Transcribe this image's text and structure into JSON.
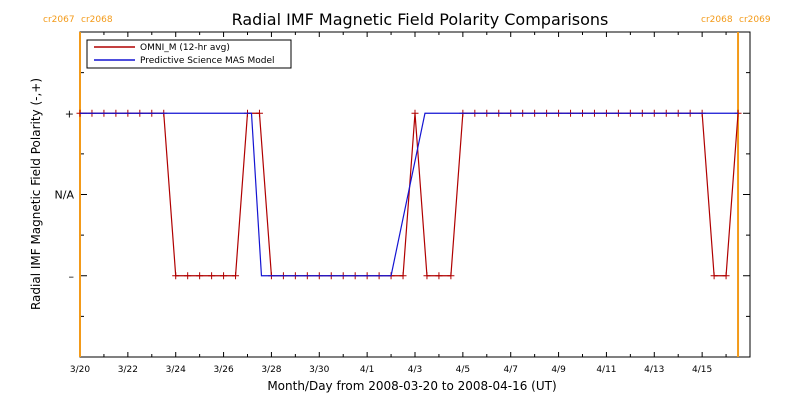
{
  "colors": {
    "omni": "#b00000",
    "mas": "#1414d2",
    "carrington": "#f39a19",
    "axis": "#000000"
  },
  "chart_data": {
    "type": "line",
    "title": "Radial IMF Magnetic Field Polarity Comparisons",
    "xlabel": "Month/Day from 2008-03-20 to 2008-04-16 (UT)",
    "ylabel": "Radial IMF Magnetic Field Polarity (-,+)",
    "x_start_date": "2008-03-20",
    "x_end_date": "2008-04-17",
    "ylim": [
      -2,
      2
    ],
    "x_ticks": [
      {
        "date": "2008-03-20",
        "label": "3/20"
      },
      {
        "date": "2008-03-22",
        "label": "3/22"
      },
      {
        "date": "2008-03-24",
        "label": "3/24"
      },
      {
        "date": "2008-03-26",
        "label": "3/26"
      },
      {
        "date": "2008-03-28",
        "label": "3/28"
      },
      {
        "date": "2008-03-30",
        "label": "3/30"
      },
      {
        "date": "2008-04-01",
        "label": "4/1"
      },
      {
        "date": "2008-04-03",
        "label": "4/3"
      },
      {
        "date": "2008-04-05",
        "label": "4/5"
      },
      {
        "date": "2008-04-07",
        "label": "4/7"
      },
      {
        "date": "2008-04-09",
        "label": "4/9"
      },
      {
        "date": "2008-04-11",
        "label": "4/11"
      },
      {
        "date": "2008-04-13",
        "label": "4/13"
      },
      {
        "date": "2008-04-15",
        "label": "4/15"
      }
    ],
    "y_ticks": [
      {
        "value": 1,
        "label": "+"
      },
      {
        "value": 0,
        "label": "N/A"
      },
      {
        "value": -1,
        "label": "–"
      }
    ],
    "carrington_markers": [
      {
        "date": "2008-03-20T00:00",
        "labels": [
          "cr2067",
          "cr2068"
        ],
        "side": "left"
      },
      {
        "date": "2008-04-16T12:00",
        "labels": [
          "cr2068",
          "cr2069"
        ],
        "side": "right"
      }
    ],
    "legend": {
      "placement": "top-left",
      "entries": [
        {
          "series": "omni",
          "label": "OMNI_M (12-hr avg)"
        },
        {
          "series": "mas",
          "label": "Predictive Science MAS Model"
        }
      ]
    },
    "series": [
      {
        "id": "omni",
        "name": "OMNI_M (12-hr avg)",
        "markers": true,
        "points": [
          [
            "2008-03-20T00:00",
            1
          ],
          [
            "2008-03-20T12:00",
            1
          ],
          [
            "2008-03-21T00:00",
            1
          ],
          [
            "2008-03-21T12:00",
            1
          ],
          [
            "2008-03-22T00:00",
            1
          ],
          [
            "2008-03-22T12:00",
            1
          ],
          [
            "2008-03-23T00:00",
            1
          ],
          [
            "2008-03-23T12:00",
            1
          ],
          [
            "2008-03-24T00:00",
            -1
          ],
          [
            "2008-03-24T12:00",
            -1
          ],
          [
            "2008-03-25T00:00",
            -1
          ],
          [
            "2008-03-25T12:00",
            -1
          ],
          [
            "2008-03-26T00:00",
            -1
          ],
          [
            "2008-03-26T12:00",
            -1
          ],
          [
            "2008-03-27T00:00",
            1
          ],
          [
            "2008-03-27T12:00",
            1
          ],
          [
            "2008-03-28T00:00",
            -1
          ],
          [
            "2008-03-28T12:00",
            -1
          ],
          [
            "2008-03-29T00:00",
            -1
          ],
          [
            "2008-03-29T12:00",
            -1
          ],
          [
            "2008-03-30T00:00",
            -1
          ],
          [
            "2008-03-30T12:00",
            -1
          ],
          [
            "2008-03-31T00:00",
            -1
          ],
          [
            "2008-03-31T12:00",
            -1
          ],
          [
            "2008-04-01T00:00",
            -1
          ],
          [
            "2008-04-01T12:00",
            -1
          ],
          [
            "2008-04-02T00:00",
            -1
          ],
          [
            "2008-04-02T12:00",
            -1
          ],
          [
            "2008-04-03T00:00",
            1
          ],
          [
            "2008-04-03T12:00",
            -1
          ],
          [
            "2008-04-04T00:00",
            -1
          ],
          [
            "2008-04-04T12:00",
            -1
          ],
          [
            "2008-04-05T00:00",
            1
          ],
          [
            "2008-04-05T12:00",
            1
          ],
          [
            "2008-04-06T00:00",
            1
          ],
          [
            "2008-04-06T12:00",
            1
          ],
          [
            "2008-04-07T00:00",
            1
          ],
          [
            "2008-04-07T12:00",
            1
          ],
          [
            "2008-04-08T00:00",
            1
          ],
          [
            "2008-04-08T12:00",
            1
          ],
          [
            "2008-04-09T00:00",
            1
          ],
          [
            "2008-04-09T12:00",
            1
          ],
          [
            "2008-04-10T00:00",
            1
          ],
          [
            "2008-04-10T12:00",
            1
          ],
          [
            "2008-04-11T00:00",
            1
          ],
          [
            "2008-04-11T12:00",
            1
          ],
          [
            "2008-04-12T00:00",
            1
          ],
          [
            "2008-04-12T12:00",
            1
          ],
          [
            "2008-04-13T00:00",
            1
          ],
          [
            "2008-04-13T12:00",
            1
          ],
          [
            "2008-04-14T00:00",
            1
          ],
          [
            "2008-04-14T12:00",
            1
          ],
          [
            "2008-04-15T00:00",
            1
          ],
          [
            "2008-04-15T12:00",
            -1
          ],
          [
            "2008-04-16T00:00",
            -1
          ],
          [
            "2008-04-16T12:00",
            1
          ]
        ]
      },
      {
        "id": "mas",
        "name": "Predictive Science MAS Model",
        "markers": false,
        "points": [
          [
            "2008-03-20T00:00",
            1
          ],
          [
            "2008-03-27T04:00",
            1
          ],
          [
            "2008-03-27T14:00",
            -1
          ],
          [
            "2008-04-02T00:00",
            -1
          ],
          [
            "2008-04-03T10:00",
            1
          ],
          [
            "2008-04-16T12:00",
            1
          ]
        ]
      }
    ]
  }
}
